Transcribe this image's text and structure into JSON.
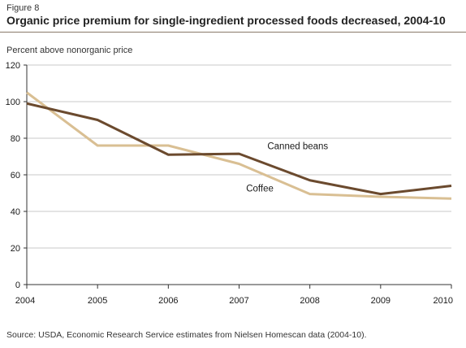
{
  "figure_label": "Figure 8",
  "chart_data": {
    "type": "line",
    "title": "Organic price premium for single-ingredient processed foods decreased, 2004-10",
    "ylabel": "Percent above nonorganic price",
    "xlabel": "",
    "x": [
      2004,
      2005,
      2006,
      2007,
      2008,
      2009,
      2010
    ],
    "ylim": [
      0,
      120
    ],
    "yticks": [
      0,
      20,
      40,
      60,
      80,
      100,
      120
    ],
    "grid": true,
    "series": [
      {
        "name": "Canned beans",
        "color": "#6b4a2e",
        "values": [
          99,
          90,
          71,
          71.5,
          57,
          49.5,
          54
        ]
      },
      {
        "name": "Coffee",
        "color": "#d9bf93",
        "values": [
          105,
          76,
          76,
          66,
          49.5,
          48,
          47
        ]
      }
    ],
    "source": "Source: USDA, Economic Research Service estimates from Nielsen Homescan data (2004-10)."
  }
}
